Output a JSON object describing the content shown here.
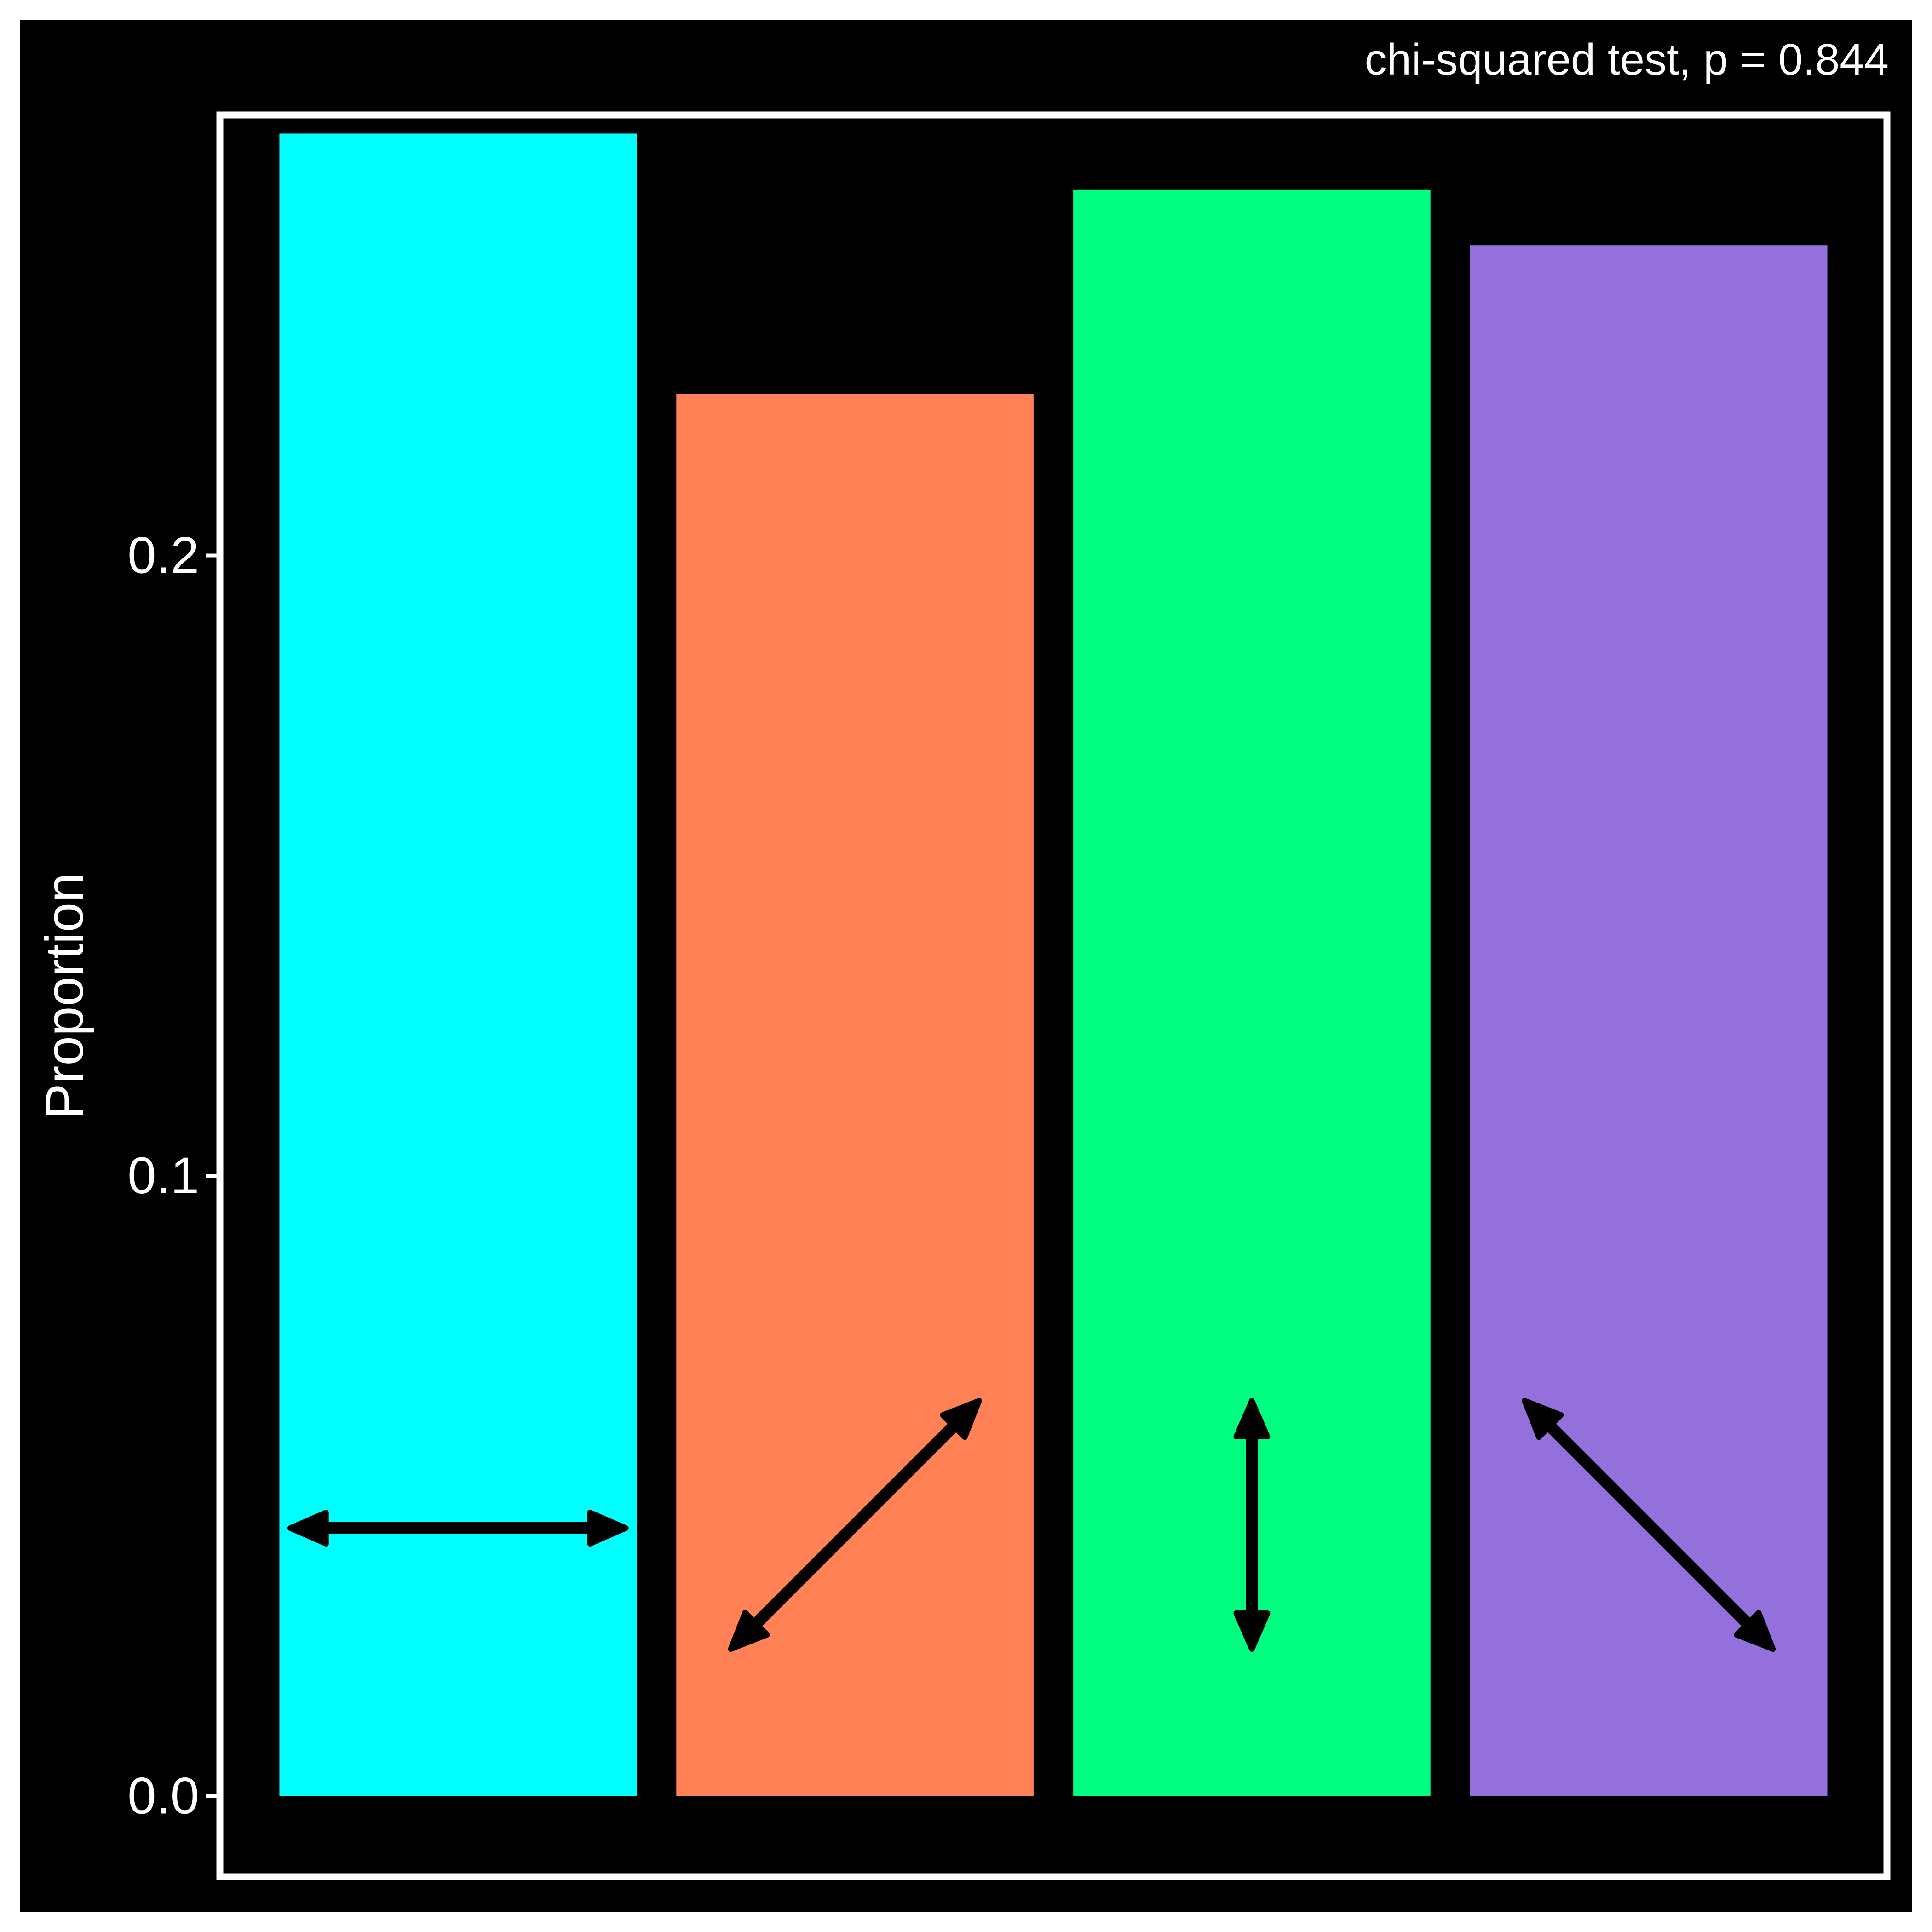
{
  "subtitle": "chi-squared test, p = 0.844",
  "chart_data": {
    "type": "bar",
    "title": "",
    "xlabel": "",
    "ylabel": "Proportion",
    "categories": [
      "horizontal",
      "diagonal-up",
      "vertical",
      "diagonal-down"
    ],
    "category_icons": [
      "horizontal-arrow-icon",
      "diagonal-up-arrow-icon",
      "vertical-arrow-icon",
      "diagonal-down-arrow-icon"
    ],
    "values": [
      0.268,
      0.226,
      0.259,
      0.25
    ],
    "colors": [
      "#00ffff",
      "#ff8155",
      "#00ff80",
      "#9370db"
    ],
    "ylim": [
      -0.013,
      0.271
    ],
    "yticks": [
      0.0,
      0.1,
      0.2
    ],
    "ytick_labels": [
      "0.0",
      "0.1",
      "0.2"
    ],
    "grid": false,
    "legend": "none",
    "background": "#000000",
    "text_color": "#ffffff"
  }
}
